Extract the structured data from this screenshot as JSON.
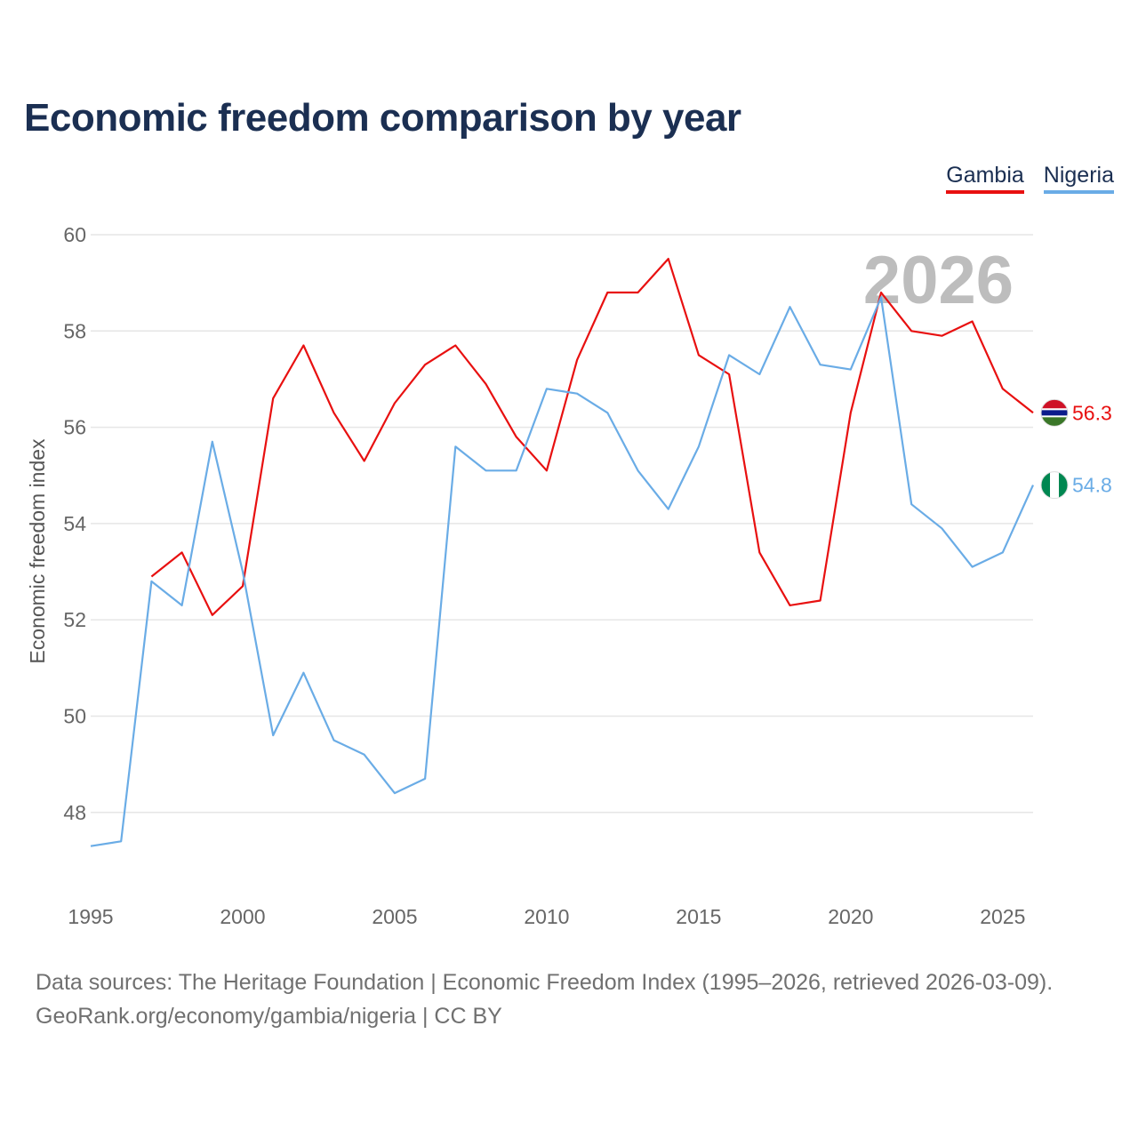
{
  "title": "Economic freedom comparison by year",
  "legend": {
    "gambia": "Gambia",
    "nigeria": "Nigeria"
  },
  "colors": {
    "gambia": "#e81010",
    "nigeria": "#6aace6",
    "title": "#1b2f52",
    "watermark": "#bdbdbd"
  },
  "watermark_year": "2026",
  "footer": {
    "line1": "Data sources: The Heritage Foundation | Economic Freedom Index (1995–2026, retrieved 2026-03-09).",
    "line2": "GeoRank.org/economy/gambia/nigeria | CC BY"
  },
  "chart_data": {
    "type": "line",
    "title": "Economic freedom comparison by year",
    "xlabel": "",
    "ylabel": "Economic freedom index",
    "xlim": [
      1995,
      2026
    ],
    "ylim": [
      46.5,
      60
    ],
    "x_ticks": [
      1995,
      2000,
      2005,
      2010,
      2015,
      2020,
      2025
    ],
    "y_ticks": [
      48,
      50,
      52,
      54,
      56,
      58,
      60
    ],
    "grid": true,
    "legend_position": "top-right",
    "series": [
      {
        "name": "Gambia",
        "color": "#e81010",
        "end_label": "56.3",
        "flag": "gambia",
        "points": [
          [
            1997,
            52.9
          ],
          [
            1998,
            53.4
          ],
          [
            1999,
            52.1
          ],
          [
            2000,
            52.7
          ],
          [
            2001,
            56.6
          ],
          [
            2002,
            57.7
          ],
          [
            2003,
            56.3
          ],
          [
            2004,
            55.3
          ],
          [
            2005,
            56.5
          ],
          [
            2006,
            57.3
          ],
          [
            2007,
            57.7
          ],
          [
            2008,
            56.9
          ],
          [
            2009,
            55.8
          ],
          [
            2010,
            55.1
          ],
          [
            2011,
            57.4
          ],
          [
            2012,
            58.8
          ],
          [
            2013,
            58.8
          ],
          [
            2014,
            59.5
          ],
          [
            2015,
            57.5
          ],
          [
            2016,
            57.1
          ],
          [
            2017,
            53.4
          ],
          [
            2018,
            52.3
          ],
          [
            2019,
            52.4
          ],
          [
            2020,
            56.3
          ],
          [
            2021,
            58.8
          ],
          [
            2022,
            58.0
          ],
          [
            2023,
            57.9
          ],
          [
            2024,
            58.2
          ],
          [
            2025,
            56.8
          ],
          [
            2026,
            56.3
          ]
        ]
      },
      {
        "name": "Nigeria",
        "color": "#6aace6",
        "end_label": "54.8",
        "flag": "nigeria",
        "points": [
          [
            1995,
            47.3
          ],
          [
            1996,
            47.4
          ],
          [
            1997,
            52.8
          ],
          [
            1998,
            52.3
          ],
          [
            1999,
            55.7
          ],
          [
            2000,
            53.0
          ],
          [
            2001,
            49.6
          ],
          [
            2002,
            50.9
          ],
          [
            2003,
            49.5
          ],
          [
            2004,
            49.2
          ],
          [
            2005,
            48.4
          ],
          [
            2006,
            48.7
          ],
          [
            2007,
            55.6
          ],
          [
            2008,
            55.1
          ],
          [
            2009,
            55.1
          ],
          [
            2010,
            56.8
          ],
          [
            2011,
            56.7
          ],
          [
            2012,
            56.3
          ],
          [
            2013,
            55.1
          ],
          [
            2014,
            54.3
          ],
          [
            2015,
            55.6
          ],
          [
            2016,
            57.5
          ],
          [
            2017,
            57.1
          ],
          [
            2018,
            58.5
          ],
          [
            2019,
            57.3
          ],
          [
            2020,
            57.2
          ],
          [
            2021,
            58.7
          ],
          [
            2022,
            54.4
          ],
          [
            2023,
            53.9
          ],
          [
            2024,
            53.1
          ],
          [
            2025,
            53.4
          ],
          [
            2026,
            54.8
          ]
        ]
      }
    ]
  }
}
